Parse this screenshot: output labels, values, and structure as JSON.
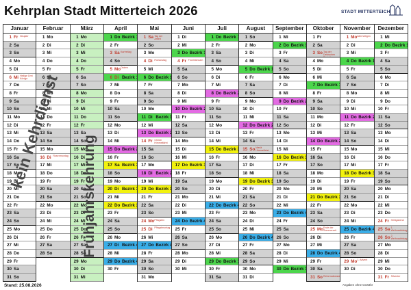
{
  "title": "Kehrplan Stadt Mitterteich 2026",
  "logo_text": "STADT MITTERTEICH",
  "footer": {
    "stand": "Stand:  25.08.2026",
    "note": "Angaben ohne Gewähr"
  },
  "overlay": {
    "winter": "kein Kehrdienst",
    "spring": "Frühjahrskehrung"
  },
  "colors": {
    "weekend": "#d2d2d2",
    "green_band": "#c8f0c0",
    "bezirk1": "#4cd64c",
    "bezirk2": "#e36be3",
    "bezirk3": "#f2f20e",
    "bezirk4": "#3aaee8",
    "holiday_text": "#c0392b"
  },
  "months": [
    {
      "name": "Januar",
      "days": 31,
      "start": 4,
      "holidays": {
        "1": "Neujahr",
        "6": "Heilige Drei Könige"
      }
    },
    {
      "name": "Februar",
      "days": 28,
      "start": 0,
      "holidays": {
        "16": "Rosenmontag"
      }
    },
    {
      "name": "März",
      "days": 31,
      "start": 0,
      "holidays": {}
    },
    {
      "name": "April",
      "days": 30,
      "start": 3,
      "holidays": {
        "3": "Karfreitag",
        "5": "Ostern",
        "6": "Ostermontag"
      },
      "bezirke": {
        "1": 1,
        "6": 1,
        "15": 2,
        "17": 3,
        "20": 3,
        "22": 3,
        "27": 4,
        "29": 4
      }
    },
    {
      "name": "Mai",
      "days": 31,
      "start": 5,
      "holidays": {
        "1": "Tag der Arbeit",
        "4": "Florianstag",
        "14": "Christi Himmelfahrt",
        "24": "Pfingsten",
        "25": "Pfingstmontag"
      },
      "bezirke": {
        "6": 1,
        "11": 1,
        "13": 2,
        "18": 2,
        "20": 3,
        "27": 4
      }
    },
    {
      "name": "Juni",
      "days": 30,
      "start": 1,
      "holidays": {
        "4": "Fronleichnam"
      },
      "bezirke": {
        "3": 1,
        "10": 2,
        "17": 3,
        "24": 4
      }
    },
    {
      "name": "Juli",
      "days": 31,
      "start": 3,
      "bezirke": {
        "1": 1,
        "8": 2,
        "15": 3,
        "22": 4,
        "29": 1
      },
      "holidays": {}
    },
    {
      "name": "August",
      "days": 31,
      "start": 6,
      "holidays": {
        "15": "Mariä Himmelfahrt"
      },
      "bezirke": {
        "5": 1,
        "12": 2,
        "19": 3,
        "26": 4
      }
    },
    {
      "name": "September",
      "days": 30,
      "start": 2,
      "bezirke": {
        "2": 1,
        "9": 2,
        "16": 3,
        "23": 4,
        "30": 1
      },
      "holidays": {}
    },
    {
      "name": "Oktober",
      "days": 31,
      "start": 4,
      "holidays": {
        "3": "Tag der Deutschen Einheit",
        "25": "Ende der Sommerzeit",
        "31": "Reformationstag"
      },
      "bezirke": {
        "7": 1,
        "14": 2,
        "21": 3,
        "28": 4
      }
    },
    {
      "name": "November",
      "days": 30,
      "start": 0,
      "holidays": {
        "1": "Allerheiligen",
        "29": "1. Advent"
      },
      "bezirke": {
        "4": 1,
        "11": 2,
        "18": 3,
        "25": 4
      }
    },
    {
      "name": "Dezember",
      "days": 31,
      "start": 2,
      "holidays": {
        "24": "Heiligabend",
        "25": "1. Weihnachtstag",
        "26": "2. Weihnachtstag",
        "31": "Silvester"
      },
      "bezirke": {
        "2": 1
      }
    }
  ],
  "weekday_abbr": [
    "Mo",
    "Di",
    "Mi",
    "Do",
    "Fr",
    "Sa",
    "So"
  ],
  "bezirk_label": "Bezirk"
}
